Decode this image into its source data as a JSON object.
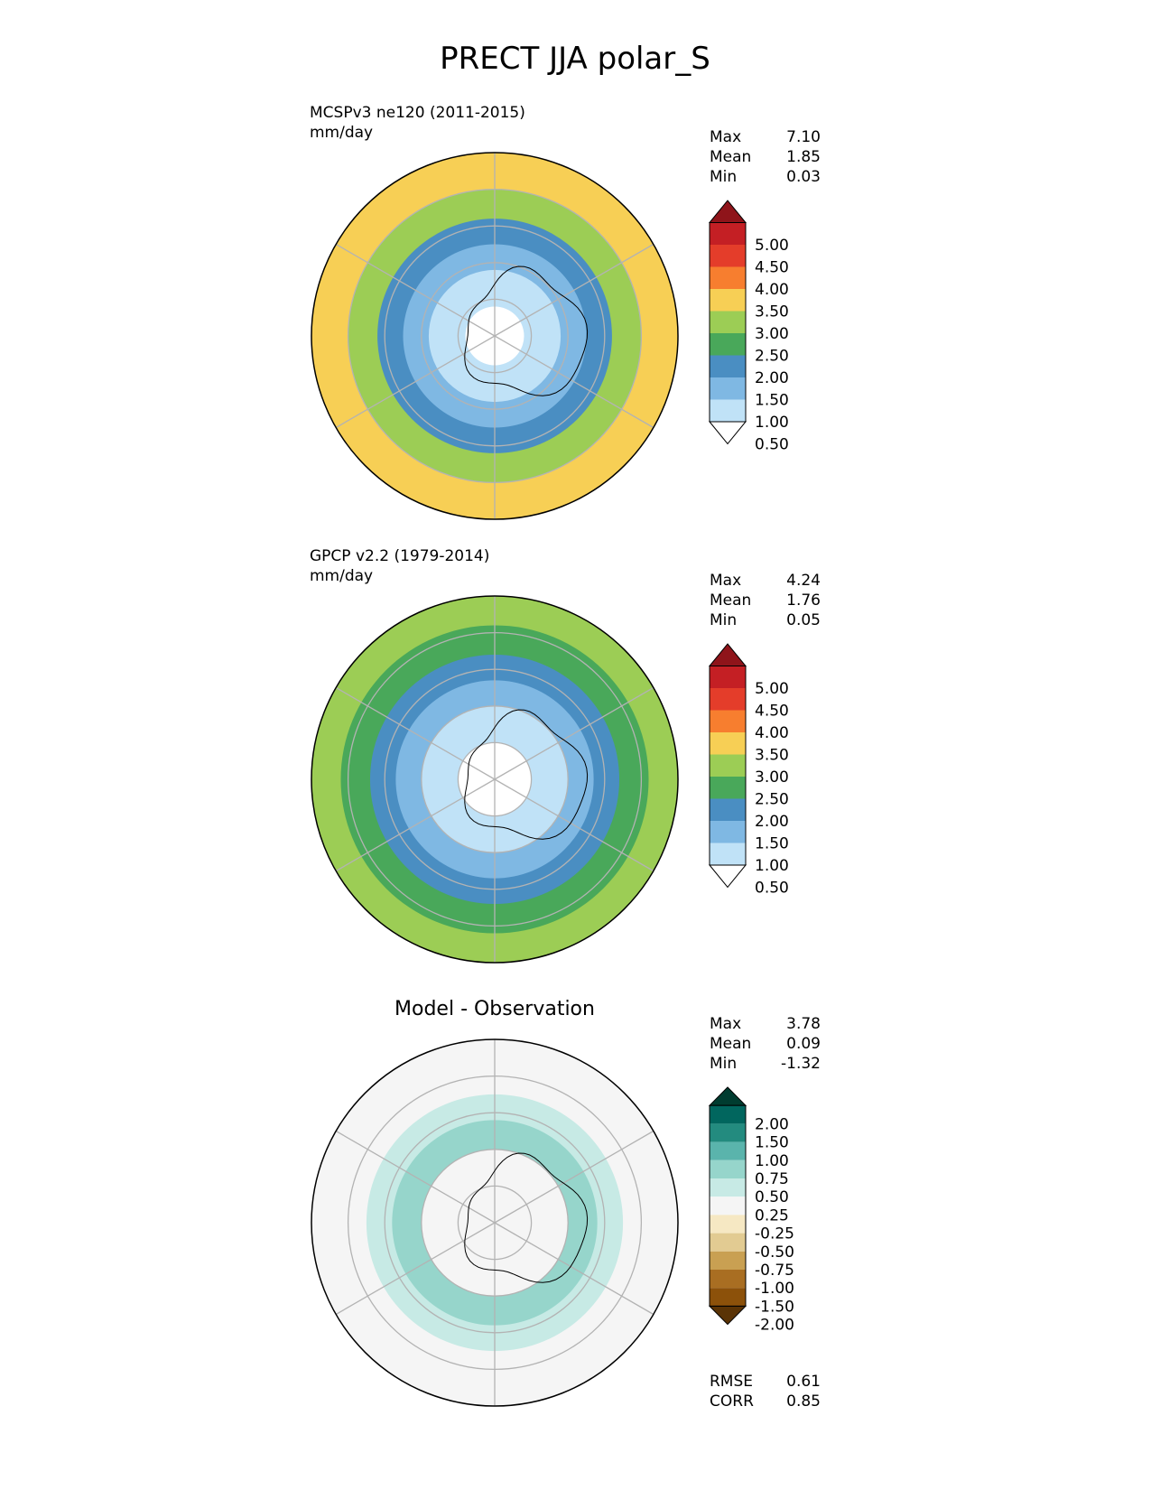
{
  "figure": {
    "title": "PRECT JJA polar_S"
  },
  "chart_data": [
    {
      "type": "heatmap",
      "projection": "south-polar-stereographic",
      "title": "",
      "subtitle": "MCSPv3 ne120 (2011-2015)",
      "units": "mm/day",
      "stats": [
        {
          "label": "Max",
          "value": "7.10"
        },
        {
          "label": "Mean",
          "value": "1.85"
        },
        {
          "label": "Min",
          "value": "0.03"
        }
      ],
      "colorbar": {
        "ticks": [
          "5.00",
          "4.50",
          "4.00",
          "3.50",
          "3.00",
          "2.50",
          "2.00",
          "1.50",
          "1.00",
          "0.50"
        ],
        "colors": [
          "#8f141a",
          "#c41f24",
          "#e43d2a",
          "#f77e2f",
          "#f7cf55",
          "#9ccd55",
          "#49a85a",
          "#4a8ec2",
          "#7fb8e3",
          "#c0e2f7",
          "#ffffff"
        ],
        "extend": "both"
      },
      "rings": [
        {
          "max_latitude_deg": -82,
          "value_mm_day": 0.3
        },
        {
          "max_latitude_deg": -72,
          "value_mm_day": 0.75
        },
        {
          "max_latitude_deg": -65,
          "value_mm_day": 1.25
        },
        {
          "max_latitude_deg": -58,
          "value_mm_day": 1.75
        },
        {
          "max_latitude_deg": -50,
          "value_mm_day": 2.75
        },
        {
          "max_latitude_deg": -40,
          "value_mm_day": 3.25
        }
      ]
    },
    {
      "type": "heatmap",
      "projection": "south-polar-stereographic",
      "title": "",
      "subtitle": "GPCP v2.2 (1979-2014)",
      "units": "mm/day",
      "stats": [
        {
          "label": "Max",
          "value": "4.24"
        },
        {
          "label": "Mean",
          "value": "1.76"
        },
        {
          "label": "Min",
          "value": "0.05"
        }
      ],
      "colorbar": {
        "ticks": [
          "5.00",
          "4.50",
          "4.00",
          "3.50",
          "3.00",
          "2.50",
          "2.00",
          "1.50",
          "1.00",
          "0.50"
        ],
        "colors": [
          "#8f141a",
          "#c41f24",
          "#e43d2a",
          "#f77e2f",
          "#f7cf55",
          "#9ccd55",
          "#49a85a",
          "#4a8ec2",
          "#7fb8e3",
          "#c0e2f7",
          "#ffffff"
        ],
        "extend": "both"
      },
      "rings": [
        {
          "max_latitude_deg": -80,
          "value_mm_day": 0.3
        },
        {
          "max_latitude_deg": -70,
          "value_mm_day": 0.75
        },
        {
          "max_latitude_deg": -63,
          "value_mm_day": 1.25
        },
        {
          "max_latitude_deg": -56,
          "value_mm_day": 1.75
        },
        {
          "max_latitude_deg": -48,
          "value_mm_day": 2.25
        },
        {
          "max_latitude_deg": -40,
          "value_mm_day": 2.75
        }
      ]
    },
    {
      "type": "heatmap",
      "projection": "south-polar-stereographic",
      "title": "Model - Observation",
      "subtitle": "",
      "units": "",
      "stats": [
        {
          "label": "Max",
          "value": "3.78"
        },
        {
          "label": "Mean",
          "value": "0.09"
        },
        {
          "label": "Min",
          "value": "-1.32"
        }
      ],
      "bottom_stats": [
        {
          "label": "RMSE",
          "value": "0.61"
        },
        {
          "label": "CORR",
          "value": "0.85"
        }
      ],
      "colorbar": {
        "ticks": [
          "2.00",
          "1.50",
          "1.00",
          "0.75",
          "0.50",
          "0.25",
          "-0.25",
          "-0.50",
          "-0.75",
          "-1.00",
          "-1.50",
          "-2.00"
        ],
        "colors": [
          "#003c30",
          "#01665e",
          "#238b7f",
          "#5ab4ac",
          "#96d5cb",
          "#c7eae5",
          "#f5f5f5",
          "#f6e8c3",
          "#e2cb92",
          "#c9a052",
          "#a96e22",
          "#8c510a",
          "#5a3305"
        ],
        "extend": "both"
      },
      "rings": [
        {
          "max_latitude_deg": -80,
          "value_mm_day": 0.0
        },
        {
          "max_latitude_deg": -70,
          "value_mm_day": 0.1
        },
        {
          "max_latitude_deg": -62,
          "value_mm_day": 0.6
        },
        {
          "max_latitude_deg": -55,
          "value_mm_day": 0.3
        },
        {
          "max_latitude_deg": -40,
          "value_mm_day": 0.0
        }
      ]
    }
  ]
}
